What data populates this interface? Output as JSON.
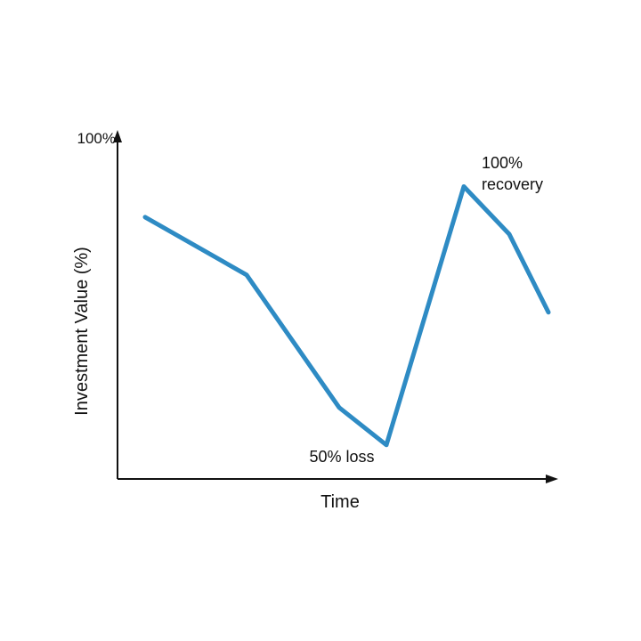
{
  "chart_data": {
    "type": "line",
    "title": "",
    "xlabel": "Time",
    "ylabel": "Investment Value (%)",
    "y_tick_label": "100%",
    "ylim": [
      0,
      100
    ],
    "grid": false,
    "series": [
      {
        "color": "#2e8bc4",
        "x": [
          1,
          2,
          3,
          4,
          5,
          6,
          7
        ],
        "values": [
          77,
          60,
          21,
          10,
          86,
          72,
          49
        ]
      }
    ],
    "annotations": [
      {
        "lines": [
          "100%",
          "recovery"
        ],
        "point": 5
      },
      {
        "lines": [
          "50% loss"
        ],
        "point": 4
      }
    ]
  }
}
